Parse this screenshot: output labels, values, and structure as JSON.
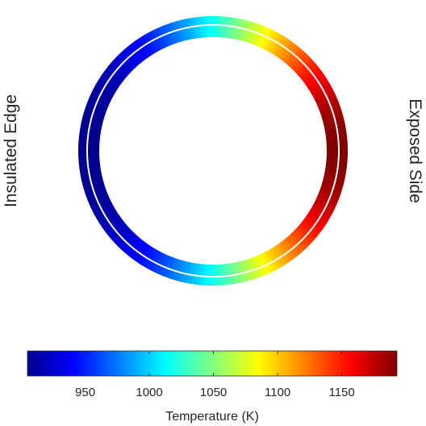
{
  "chart_data": {
    "type": "heatmap",
    "title": "",
    "left_label": "Insulated Edge",
    "right_label": "Exposed Side",
    "colorbar": {
      "label": "Temperature (K)",
      "range": [
        905,
        1193
      ],
      "ticks": [
        "950",
        "1000",
        "1050",
        "1100",
        "1150"
      ],
      "colormap": "jet",
      "colormap_stops": [
        "#00008f",
        "#0000ff",
        "#0080ff",
        "#00ffff",
        "#80ff80",
        "#ffff00",
        "#ff8000",
        "#ff0000",
        "#800000"
      ]
    },
    "rings": [
      {
        "name": "",
        "min": 905,
        "max": 1193
      },
      {
        "name": "",
        "min": 905,
        "max": 1193
      }
    ],
    "field": "temperature increases from the insulated (left) edge to the exposed (right) side"
  }
}
